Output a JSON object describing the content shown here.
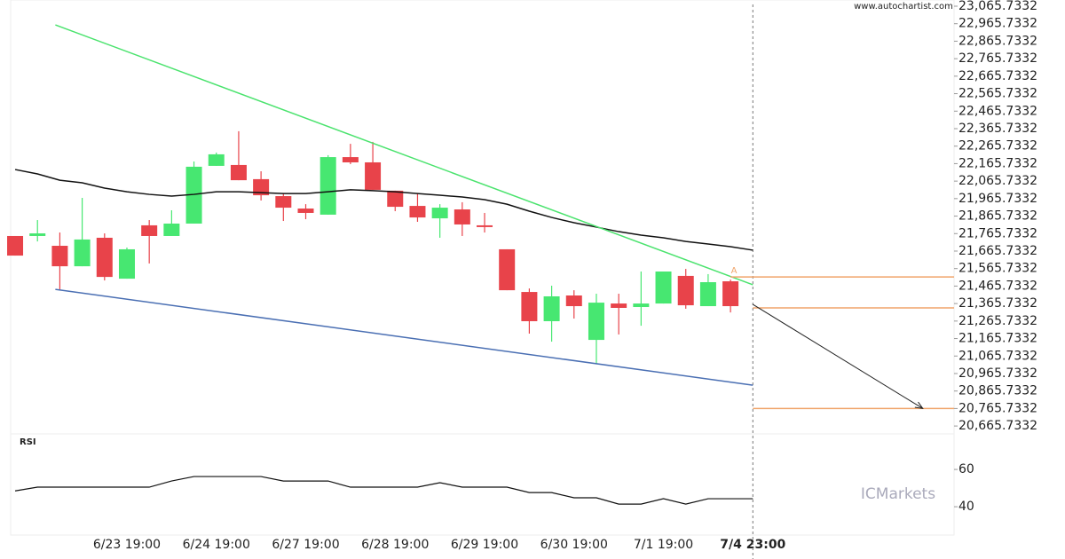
{
  "watermark": "www.autochartist.com",
  "brand": "ICMarkets",
  "chart_data": [
    {
      "type": "candlestick",
      "xlim": [
        -0.2,
        42
      ],
      "ylim": [
        20625.7332,
        23065.7332
      ],
      "yticks": [
        {
          "value": 23065.7332,
          "label": "23,065.7332"
        },
        {
          "value": 22965.7332,
          "label": "22,965.7332"
        },
        {
          "value": 22865.7332,
          "label": "22,865.7332"
        },
        {
          "value": 22765.7332,
          "label": "22,765.7332"
        },
        {
          "value": 22665.7332,
          "label": "22,665.7332"
        },
        {
          "value": 22565.7332,
          "label": "22,565.7332"
        },
        {
          "value": 22465.7332,
          "label": "22,465.7332"
        },
        {
          "value": 22365.7332,
          "label": "22,365.7332"
        },
        {
          "value": 22265.7332,
          "label": "22,265.7332"
        },
        {
          "value": 22165.7332,
          "label": "22,165.7332"
        },
        {
          "value": 22065.7332,
          "label": "22,065.7332"
        },
        {
          "value": 21965.7332,
          "label": "21,965.7332"
        },
        {
          "value": 21865.7332,
          "label": "21,865.7332"
        },
        {
          "value": 21765.7332,
          "label": "21,765.7332"
        },
        {
          "value": 21665.7332,
          "label": "21,665.7332"
        },
        {
          "value": 21565.7332,
          "label": "21,565.7332"
        },
        {
          "value": 21465.7332,
          "label": "21,465.7332"
        },
        {
          "value": 21365.7332,
          "label": "21,365.7332"
        },
        {
          "value": 21265.7332,
          "label": "21,265.7332"
        },
        {
          "value": 21165.7332,
          "label": "21,165.7332"
        },
        {
          "value": 21065.7332,
          "label": "21,065.7332"
        },
        {
          "value": 20965.7332,
          "label": "20,965.7332"
        },
        {
          "value": 20865.7332,
          "label": "20,865.7332"
        },
        {
          "value": 20765.7332,
          "label": "20,765.7332"
        },
        {
          "value": 20665.7332,
          "label": "20,665.7332"
        }
      ],
      "xticks": [
        {
          "value": 5,
          "label": "6/23 19:00"
        },
        {
          "value": 9,
          "label": "6/24 19:00"
        },
        {
          "value": 13,
          "label": "6/27 19:00"
        },
        {
          "value": 17,
          "label": "6/28 19:00"
        },
        {
          "value": 21,
          "label": "6/29 19:00"
        },
        {
          "value": 25,
          "label": "6/30 19:00"
        },
        {
          "value": 29,
          "label": "7/1 19:00"
        },
        {
          "value": 33,
          "label": "7/4 23:00"
        }
      ],
      "x": [
        0,
        1,
        2,
        3,
        4,
        5,
        6,
        7,
        8,
        9,
        10,
        11,
        12,
        13,
        14,
        15,
        16,
        17,
        18,
        19,
        20,
        21,
        22,
        23,
        24,
        25,
        26,
        27,
        28,
        29,
        30,
        31,
        32
      ],
      "open": [
        21752,
        21752,
        21696,
        21579,
        21742,
        21508,
        21813,
        21752,
        21823,
        22153,
        22158,
        22077,
        21980,
        21909,
        21874,
        22203,
        22173,
        22011,
        21924,
        21853,
        21904,
        21813,
        21676,
        21432,
        21265,
        21412,
        21158,
        21366,
        21346,
        21366,
        21524,
        21351,
        21493
      ],
      "high": [
        21752,
        21843,
        21772,
        21970,
        21767,
        21686,
        21843,
        21899,
        22178,
        22229,
        22351,
        22122,
        21995,
        21934,
        22214,
        22279,
        22290,
        22011,
        21995,
        21934,
        21945,
        21884,
        21676,
        21452,
        21468,
        21442,
        21422,
        21422,
        21549,
        21549,
        21564,
        21534,
        21503
      ],
      "low": [
        21640,
        21721,
        21447,
        21579,
        21498,
        21508,
        21595,
        21752,
        21823,
        22153,
        22071,
        21955,
        21838,
        21848,
        21874,
        22163,
        22016,
        21894,
        21833,
        21742,
        21752,
        21772,
        21442,
        21194,
        21148,
        21280,
        21021,
        21189,
        21239,
        21366,
        21336,
        21351,
        21315
      ],
      "close": [
        21640,
        21767,
        21579,
        21732,
        21518,
        21676,
        21752,
        21823,
        22148,
        22219,
        22071,
        21985,
        21914,
        21884,
        22203,
        22173,
        22016,
        21919,
        21858,
        21914,
        21818,
        21803,
        21442,
        21265,
        21407,
        21351,
        21371,
        21341,
        21366,
        21549,
        21356,
        21488,
        21351
      ],
      "up_color": "#47e771",
      "down_color": "#e8434a",
      "overlays": [
        {
          "color": "#111111",
          "x": [
            0,
            1,
            2,
            3,
            4,
            5,
            6,
            7,
            8,
            9,
            10,
            11,
            12,
            13,
            14,
            15,
            16,
            17,
            18,
            19,
            20,
            21,
            22,
            23,
            24,
            25,
            26,
            27,
            28,
            29,
            30,
            31,
            32,
            33
          ],
          "values": [
            22132,
            22107,
            22071,
            22056,
            22026,
            22005,
            21990,
            21980,
            21990,
            22005,
            22005,
            22000,
            21995,
            21995,
            22005,
            22016,
            22011,
            22005,
            21995,
            21985,
            21975,
            21960,
            21934,
            21894,
            21858,
            21828,
            21803,
            21777,
            21757,
            21742,
            21721,
            21706,
            21691,
            21671
          ]
        },
        {
          "color": "#4be36e",
          "x": [
            1.8,
            33
          ],
          "values": [
            22959,
            21473
          ]
        },
        {
          "color": "#4a6fb3",
          "x": [
            1.8,
            33
          ],
          "values": [
            21447,
            20899
          ]
        },
        {
          "color": "#f0a46a",
          "x": [
            32,
            42
          ],
          "values": [
            21518,
            21518
          ]
        },
        {
          "color": "#f0a46a",
          "x": [
            33,
            42
          ],
          "values": [
            21341,
            21341
          ]
        },
        {
          "color": "#f0a46a",
          "x": [
            33,
            42
          ],
          "values": [
            20766,
            20766
          ]
        },
        {
          "color": "#222222",
          "x": [
            33,
            40.6
          ],
          "values": [
            21361,
            20766
          ],
          "arrow": true
        }
      ],
      "annotation": "A"
    },
    {
      "type": "line",
      "title": "RSI",
      "xlim": [
        -0.2,
        42
      ],
      "ylim": [
        24.8,
        78.6
      ],
      "yticks": [
        40,
        60
      ],
      "color": "#111111",
      "x": [
        0,
        1,
        2,
        3,
        4,
        5,
        6,
        7,
        8,
        9,
        10,
        11,
        12,
        13,
        14,
        15,
        16,
        17,
        18,
        19,
        20,
        21,
        22,
        23,
        24,
        25,
        26,
        27,
        28,
        29,
        30,
        31,
        32,
        33
      ],
      "values": [
        48.5,
        50.5,
        50.5,
        50.5,
        50.5,
        50.5,
        50.5,
        53.8,
        56.2,
        56.2,
        56.2,
        56.2,
        53.8,
        53.8,
        53.8,
        50.5,
        50.5,
        50.5,
        50.5,
        52.9,
        50.5,
        50.5,
        50.5,
        47.6,
        47.6,
        44.8,
        44.8,
        41.4,
        41.4,
        44.3,
        41.4,
        44.3,
        44.3,
        44.3
      ]
    }
  ]
}
